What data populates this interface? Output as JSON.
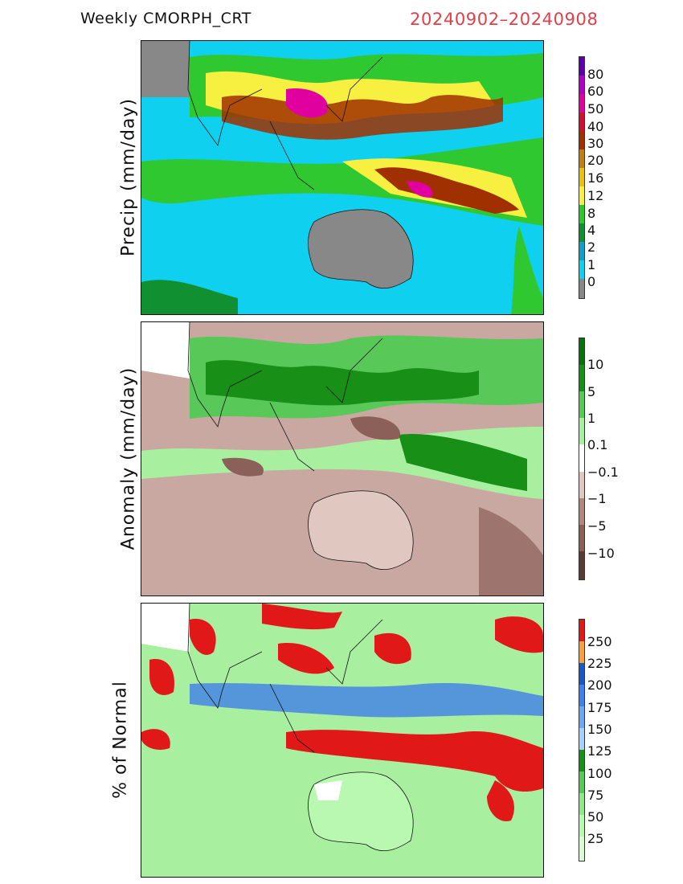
{
  "header": {
    "product": "Weekly  CMORPH_CRT",
    "dates": "20240902–20240908"
  },
  "panels": [
    {
      "id": "precip",
      "ylabel": "Precip  (mm/day)",
      "legend": [
        "0",
        "1",
        "2",
        "4",
        "8",
        "12",
        "16",
        "20",
        "30",
        "40",
        "50",
        "60",
        "80"
      ],
      "colors": [
        "#888888",
        "#10d0f0",
        "#10a0c8",
        "#109030",
        "#30c830",
        "#f8f040",
        "#e8c010",
        "#c08010",
        "#a03000",
        "#d01030",
        "#e000a0",
        "#b000c8",
        "#5a00a8"
      ],
      "bg": "#10d0f0"
    },
    {
      "id": "anomaly",
      "ylabel": "Anomaly  (mm/day)",
      "legend": [
        "−10",
        "−5",
        "−1",
        "−0.1",
        "0.1",
        "1",
        "5",
        "10"
      ],
      "colors": [
        "#5a3a32",
        "#8a6058",
        "#b08880",
        "#e0c8c0",
        "#ffffff",
        "#a8f0a0",
        "#58c858",
        "#189018",
        "#0a700a"
      ],
      "bg": "#c8a8a0"
    },
    {
      "id": "percent",
      "ylabel": "%  of  Normal",
      "legend": [
        "25",
        "50",
        "75",
        "100",
        "125",
        "150",
        "175",
        "200",
        "225",
        "250"
      ],
      "colors": [
        "#b8f8b0",
        "#90e888",
        "#58c858",
        "#189018",
        "#a8d0f8",
        "#70a8f0",
        "#4080e8",
        "#1858c0",
        "#f8a040",
        "#e01818"
      ],
      "bg": "#a8f0a0"
    }
  ]
}
